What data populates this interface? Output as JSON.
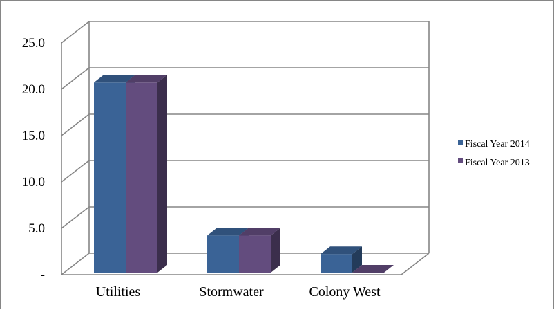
{
  "chart_data": {
    "type": "bar",
    "style": "3d-clustered-column",
    "categories": [
      "Utilities",
      "Stormwater",
      "Colony West"
    ],
    "series": [
      {
        "name": "Fiscal Year 2014",
        "values": [
          20.5,
          4.0,
          2.0
        ],
        "color": "#3A6396"
      },
      {
        "name": "Fiscal Year 2013",
        "values": [
          20.5,
          4.0,
          0.0
        ],
        "color": "#634C7E"
      }
    ],
    "y_ticks": [
      "-",
      "5.0",
      "10.0",
      "15.0",
      "20.0",
      "25.0"
    ],
    "ylim": [
      0,
      25
    ],
    "grid": true,
    "legend_position": "right"
  }
}
